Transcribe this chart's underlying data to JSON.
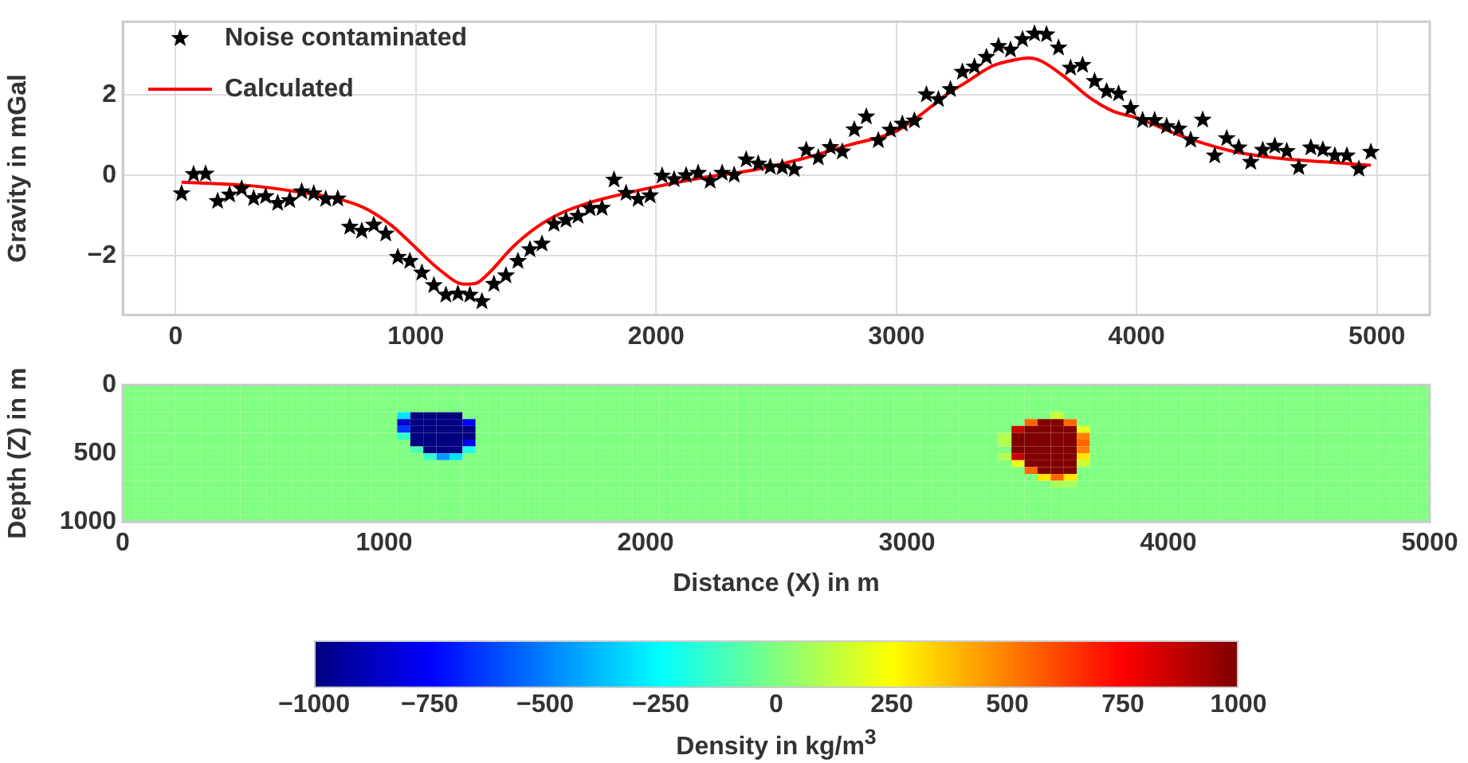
{
  "chart_data": [
    {
      "type": "scatter",
      "ylabel": "Gravity in mGal",
      "xlim": [
        -220,
        5220
      ],
      "xticks": [
        0,
        1000,
        2000,
        3000,
        4000,
        5000
      ],
      "ylim": [
        -3.47,
        3.82
      ],
      "yticks": [
        {
          "value": -2,
          "label": "−2"
        },
        0,
        2
      ],
      "grid": true,
      "legend": "top left",
      "series": [
        {
          "name": "Noise contaminated",
          "type": "scatter",
          "marker": "star",
          "color": "#000000",
          "x": [
            25,
            75,
            125,
            175,
            225,
            275,
            325,
            375,
            425,
            475,
            525,
            575,
            625,
            675,
            725,
            775,
            825,
            875,
            925,
            975,
            1025,
            1075,
            1125,
            1175,
            1225,
            1275,
            1325,
            1375,
            1425,
            1475,
            1525,
            1575,
            1625,
            1675,
            1725,
            1775,
            1825,
            1875,
            1925,
            1975,
            2025,
            2075,
            2125,
            2175,
            2225,
            2275,
            2325,
            2375,
            2425,
            2475,
            2525,
            2575,
            2625,
            2675,
            2725,
            2775,
            2825,
            2875,
            2925,
            2975,
            3025,
            3075,
            3125,
            3175,
            3225,
            3275,
            3325,
            3375,
            3425,
            3475,
            3525,
            3575,
            3625,
            3675,
            3725,
            3775,
            3825,
            3875,
            3925,
            3975,
            4025,
            4075,
            4125,
            4175,
            4225,
            4275,
            4325,
            4375,
            4425,
            4475,
            4525,
            4575,
            4625,
            4675,
            4725,
            4775,
            4825,
            4875,
            4925,
            4975
          ],
          "values": [
            -0.45,
            0.03,
            0.04,
            -0.64,
            -0.48,
            -0.33,
            -0.57,
            -0.52,
            -0.69,
            -0.62,
            -0.4,
            -0.45,
            -0.59,
            -0.58,
            -1.28,
            -1.38,
            -1.23,
            -1.45,
            -2.03,
            -2.13,
            -2.42,
            -2.73,
            -2.97,
            -2.94,
            -2.97,
            -3.13,
            -2.7,
            -2.49,
            -2.13,
            -1.84,
            -1.7,
            -1.21,
            -1.11,
            -1.01,
            -0.82,
            -0.81,
            -0.11,
            -0.44,
            -0.59,
            -0.5,
            -0.01,
            -0.1,
            0,
            0.06,
            -0.14,
            0.06,
            0.01,
            0.39,
            0.29,
            0.21,
            0.2,
            0.15,
            0.63,
            0.44,
            0.7,
            0.59,
            1.14,
            1.46,
            0.87,
            1.13,
            1.28,
            1.36,
            2.01,
            1.89,
            2.14,
            2.57,
            2.7,
            2.94,
            3.21,
            3.12,
            3.38,
            3.52,
            3.5,
            3.17,
            2.67,
            2.74,
            2.34,
            2.09,
            2.03,
            1.67,
            1.37,
            1.37,
            1.22,
            1.16,
            0.88,
            1.38,
            0.49,
            0.92,
            0.69,
            0.33,
            0.63,
            0.73,
            0.6,
            0.2,
            0.69,
            0.64,
            0.49,
            0.49,
            0.16,
            0.58
          ]
        },
        {
          "name": "Calculated",
          "type": "line",
          "marker": "none",
          "color": "#ff0000",
          "x": [
            25,
            300,
            500,
            700,
            800,
            900,
            1000,
            1100,
            1200,
            1250,
            1300,
            1400,
            1500,
            1600,
            1700,
            1800,
            2000,
            2200,
            2400,
            2600,
            2800,
            3000,
            3100,
            3200,
            3300,
            3400,
            3500,
            3550,
            3600,
            3700,
            3800,
            3900,
            4000,
            4200,
            4400,
            4600,
            4800,
            4975
          ],
          "values": [
            -0.17,
            -0.25,
            -0.4,
            -0.62,
            -0.85,
            -1.25,
            -1.8,
            -2.35,
            -2.7,
            -2.68,
            -2.45,
            -1.8,
            -1.3,
            -0.95,
            -0.72,
            -0.55,
            -0.28,
            -0.05,
            0.13,
            0.4,
            0.75,
            1.1,
            1.5,
            1.97,
            2.35,
            2.72,
            2.88,
            2.92,
            2.85,
            2.45,
            1.95,
            1.6,
            1.43,
            0.95,
            0.6,
            0.42,
            0.33,
            0.25
          ]
        }
      ]
    },
    {
      "type": "heatmap",
      "xlabel": "Distance (X) in m",
      "ylabel": "Depth (Z) in m",
      "clabel": "Density in kg/m$^{3}$",
      "xlim": [
        0,
        5000
      ],
      "xticks": [
        0,
        1000,
        2000,
        3000,
        4000,
        5000
      ],
      "ylim": [
        1000,
        0
      ],
      "yticks": [
        0,
        500,
        1000
      ],
      "clim": [
        -1000,
        1000
      ],
      "cticks": [
        {
          "value": -1000,
          "label": "−1000"
        },
        {
          "value": -750,
          "label": "−750"
        },
        {
          "value": -500,
          "label": "−500"
        },
        {
          "value": -250,
          "label": "−250"
        },
        0,
        250,
        500,
        750,
        1000
      ],
      "cells": [
        [
          0,
          0,
          0,
          0,
          0,
          0,
          0,
          0,
          0,
          0,
          0,
          0,
          0,
          0,
          0,
          0,
          0,
          0,
          0,
          0,
          0,
          0,
          0,
          0,
          0,
          0,
          0,
          0,
          0,
          0,
          0,
          0,
          0,
          0,
          0,
          0,
          0,
          0,
          0,
          0,
          0,
          0,
          0,
          0,
          0,
          0,
          0,
          0,
          0,
          0,
          0,
          0,
          0,
          0,
          0,
          0,
          0,
          0,
          0,
          0,
          0,
          0,
          0,
          0,
          0,
          0,
          0,
          0,
          0,
          0,
          0,
          0,
          0,
          0,
          0,
          0,
          0,
          0,
          0,
          0,
          0,
          0,
          0,
          0,
          0,
          0,
          0,
          0,
          0,
          0,
          0,
          0,
          0,
          0,
          0,
          0,
          0,
          0,
          0,
          0
        ],
        [
          0,
          0,
          0,
          0,
          0,
          0,
          0,
          0,
          0,
          0,
          0,
          0,
          0,
          0,
          0,
          0,
          0,
          0,
          0,
          0,
          0,
          0,
          0,
          0,
          0,
          0,
          0,
          0,
          0,
          0,
          0,
          0,
          0,
          0,
          0,
          0,
          0,
          0,
          0,
          0,
          0,
          0,
          0,
          0,
          0,
          0,
          0,
          0,
          0,
          0,
          0,
          0,
          0,
          0,
          0,
          0,
          0,
          0,
          0,
          0,
          0,
          0,
          0,
          0,
          0,
          0,
          0,
          0,
          0,
          0,
          0,
          0,
          0,
          0,
          0,
          0,
          0,
          0,
          0,
          0,
          0,
          0,
          0,
          0,
          0,
          0,
          0,
          0,
          0,
          0,
          0,
          0,
          0,
          0,
          0,
          0,
          0,
          0,
          0,
          0
        ],
        [
          0,
          0,
          0,
          0,
          0,
          0,
          0,
          0,
          0,
          0,
          0,
          0,
          0,
          0,
          0,
          0,
          0,
          0,
          0,
          0,
          0,
          0,
          0,
          0,
          0,
          0,
          0,
          0,
          0,
          0,
          0,
          0,
          0,
          0,
          0,
          0,
          0,
          0,
          0,
          0,
          0,
          0,
          0,
          0,
          0,
          0,
          0,
          0,
          0,
          0,
          0,
          0,
          0,
          0,
          0,
          0,
          0,
          0,
          0,
          0,
          0,
          0,
          0,
          0,
          0,
          0,
          0,
          0,
          0,
          0,
          0,
          0,
          0,
          0,
          0,
          0,
          0,
          0,
          0,
          0,
          0,
          0,
          0,
          0,
          0,
          0,
          0,
          0,
          0,
          0,
          0,
          0,
          0,
          0,
          0,
          0,
          0,
          0,
          0,
          0
        ],
        [
          0,
          0,
          0,
          0,
          0,
          0,
          0,
          0,
          0,
          0,
          0,
          0,
          0,
          0,
          0,
          0,
          0,
          0,
          0,
          0,
          0,
          0,
          0,
          0,
          0,
          0,
          0,
          0,
          0,
          0,
          0,
          0,
          0,
          0,
          0,
          0,
          0,
          0,
          0,
          0,
          0,
          0,
          0,
          0,
          0,
          0,
          0,
          0,
          0,
          0,
          0,
          0,
          0,
          0,
          0,
          0,
          0,
          0,
          0,
          0,
          0,
          0,
          0,
          0,
          0,
          0,
          0,
          0,
          0,
          0,
          0,
          0,
          0,
          0,
          0,
          0,
          0,
          0,
          0,
          0,
          0,
          0,
          0,
          0,
          0,
          0,
          0,
          0,
          0,
          0,
          0,
          0,
          0,
          0,
          0,
          0,
          0,
          0,
          0,
          0
        ],
        [
          0,
          0,
          0,
          0,
          0,
          0,
          0,
          0,
          0,
          0,
          0,
          0,
          0,
          0,
          0,
          0,
          0,
          0,
          0,
          0,
          0,
          -300,
          -1000,
          -1000,
          -1000,
          -1000,
          0,
          0,
          0,
          0,
          0,
          0,
          0,
          0,
          0,
          0,
          0,
          0,
          0,
          0,
          0,
          0,
          0,
          0,
          0,
          0,
          0,
          0,
          0,
          0,
          0,
          0,
          0,
          0,
          0,
          0,
          0,
          0,
          0,
          0,
          0,
          0,
          0,
          0,
          0,
          0,
          0,
          0,
          0,
          0,
          0,
          150,
          0,
          0,
          0,
          0,
          0,
          0,
          0,
          0,
          0,
          0,
          0,
          0,
          0,
          0,
          0,
          0,
          0,
          0,
          0,
          0,
          0,
          0,
          0,
          0,
          0,
          0,
          0,
          0
        ],
        [
          0,
          0,
          0,
          0,
          0,
          0,
          0,
          0,
          0,
          0,
          0,
          0,
          0,
          0,
          0,
          0,
          0,
          0,
          0,
          0,
          0,
          -850,
          -1000,
          -1000,
          -1000,
          -1000,
          -750,
          0,
          0,
          0,
          0,
          0,
          0,
          0,
          0,
          0,
          0,
          0,
          0,
          0,
          0,
          0,
          0,
          0,
          0,
          0,
          0,
          0,
          0,
          0,
          0,
          0,
          0,
          0,
          0,
          0,
          0,
          0,
          0,
          0,
          0,
          0,
          0,
          0,
          0,
          0,
          0,
          0,
          0,
          550,
          1000,
          1000,
          550,
          0,
          0,
          0,
          0,
          0,
          0,
          0,
          0,
          0,
          0,
          0,
          0,
          0,
          0,
          0,
          0,
          0,
          0,
          0,
          0,
          0,
          0,
          0,
          0,
          0,
          0,
          0
        ],
        [
          0,
          0,
          0,
          0,
          0,
          0,
          0,
          0,
          0,
          0,
          0,
          0,
          0,
          0,
          0,
          0,
          0,
          0,
          0,
          0,
          0,
          -650,
          -1000,
          -1000,
          -1000,
          -1000,
          -1000,
          0,
          0,
          0,
          0,
          0,
          0,
          0,
          0,
          0,
          0,
          0,
          0,
          0,
          0,
          0,
          0,
          0,
          0,
          0,
          0,
          0,
          0,
          0,
          0,
          0,
          0,
          0,
          0,
          0,
          0,
          0,
          0,
          0,
          0,
          0,
          0,
          0,
          0,
          0,
          0,
          0,
          850,
          1000,
          1000,
          1000,
          1000,
          200,
          0,
          0,
          0,
          0,
          0,
          0,
          0,
          0,
          0,
          0,
          0,
          0,
          0,
          0,
          0,
          0,
          0,
          0,
          0,
          0,
          0,
          0,
          0,
          0,
          0,
          0
        ],
        [
          0,
          0,
          0,
          0,
          0,
          0,
          0,
          0,
          0,
          0,
          0,
          0,
          0,
          0,
          0,
          0,
          0,
          0,
          0,
          0,
          0,
          -150,
          -1000,
          -1000,
          -1000,
          -1000,
          -1000,
          0,
          0,
          0,
          0,
          0,
          0,
          0,
          0,
          0,
          0,
          0,
          0,
          0,
          0,
          0,
          0,
          0,
          0,
          0,
          0,
          0,
          0,
          0,
          0,
          0,
          0,
          0,
          0,
          0,
          0,
          0,
          0,
          0,
          0,
          0,
          0,
          0,
          0,
          0,
          0,
          100,
          1000,
          1000,
          1000,
          1000,
          1000,
          500,
          0,
          0,
          0,
          0,
          0,
          0,
          0,
          0,
          0,
          0,
          0,
          0,
          0,
          0,
          0,
          0,
          0,
          0,
          0,
          0,
          0,
          0,
          0,
          0,
          0,
          0
        ],
        [
          0,
          0,
          0,
          0,
          0,
          0,
          0,
          0,
          0,
          0,
          0,
          0,
          0,
          0,
          0,
          0,
          0,
          0,
          0,
          0,
          0,
          0,
          -1000,
          -1000,
          -1000,
          -1000,
          -800,
          0,
          0,
          0,
          0,
          0,
          0,
          0,
          0,
          0,
          0,
          0,
          0,
          0,
          0,
          0,
          0,
          0,
          0,
          0,
          0,
          0,
          0,
          0,
          0,
          0,
          0,
          0,
          0,
          0,
          0,
          0,
          0,
          0,
          0,
          0,
          0,
          0,
          0,
          0,
          0,
          100,
          1000,
          1000,
          1000,
          1000,
          1000,
          550,
          0,
          0,
          0,
          0,
          0,
          0,
          0,
          0,
          0,
          0,
          0,
          0,
          0,
          0,
          0,
          0,
          0,
          0,
          0,
          0,
          0,
          0,
          0,
          0,
          0,
          0
        ],
        [
          0,
          0,
          0,
          0,
          0,
          0,
          0,
          0,
          0,
          0,
          0,
          0,
          0,
          0,
          0,
          0,
          0,
          0,
          0,
          0,
          0,
          0,
          -100,
          -1000,
          -1000,
          -1000,
          -200,
          0,
          0,
          0,
          0,
          0,
          0,
          0,
          0,
          0,
          0,
          0,
          0,
          0,
          0,
          0,
          0,
          0,
          0,
          0,
          0,
          0,
          0,
          0,
          0,
          0,
          0,
          0,
          0,
          0,
          0,
          0,
          0,
          0,
          0,
          0,
          0,
          0,
          0,
          0,
          0,
          0,
          1000,
          1000,
          1000,
          1000,
          1000,
          500,
          0,
          0,
          0,
          0,
          0,
          0,
          0,
          0,
          0,
          0,
          0,
          0,
          0,
          0,
          0,
          0,
          0,
          0,
          0,
          0,
          0,
          0,
          0,
          0,
          0,
          0
        ],
        [
          0,
          0,
          0,
          0,
          0,
          0,
          0,
          0,
          0,
          0,
          0,
          0,
          0,
          0,
          0,
          0,
          0,
          0,
          0,
          0,
          0,
          0,
          0,
          -150,
          -450,
          -300,
          0,
          0,
          0,
          0,
          0,
          0,
          0,
          0,
          0,
          0,
          0,
          0,
          0,
          0,
          0,
          0,
          0,
          0,
          0,
          0,
          0,
          0,
          0,
          0,
          0,
          0,
          0,
          0,
          0,
          0,
          0,
          0,
          0,
          0,
          0,
          0,
          0,
          0,
          0,
          0,
          0,
          100,
          850,
          1000,
          1000,
          1000,
          1000,
          300,
          0,
          0,
          0,
          0,
          0,
          0,
          0,
          0,
          0,
          0,
          0,
          0,
          0,
          0,
          0,
          0,
          0,
          0,
          0,
          0,
          0,
          0,
          0,
          0,
          0,
          0
        ],
        [
          0,
          0,
          0,
          0,
          0,
          0,
          0,
          0,
          0,
          0,
          0,
          0,
          0,
          0,
          0,
          0,
          0,
          0,
          0,
          0,
          0,
          0,
          0,
          0,
          0,
          0,
          0,
          0,
          0,
          0,
          0,
          0,
          0,
          0,
          0,
          0,
          0,
          0,
          0,
          0,
          0,
          0,
          0,
          0,
          0,
          0,
          0,
          0,
          0,
          0,
          0,
          0,
          0,
          0,
          0,
          0,
          0,
          0,
          0,
          0,
          0,
          0,
          0,
          0,
          0,
          0,
          0,
          0,
          200,
          1000,
          1000,
          1000,
          1000,
          150,
          0,
          0,
          0,
          0,
          0,
          0,
          0,
          0,
          0,
          0,
          0,
          0,
          0,
          0,
          0,
          0,
          0,
          0,
          0,
          0,
          0,
          0,
          0,
          0,
          0,
          0
        ],
        [
          0,
          0,
          0,
          0,
          0,
          0,
          0,
          0,
          0,
          0,
          0,
          0,
          0,
          0,
          0,
          0,
          0,
          0,
          0,
          0,
          0,
          0,
          0,
          0,
          0,
          0,
          0,
          0,
          0,
          0,
          0,
          0,
          0,
          0,
          0,
          0,
          0,
          0,
          0,
          0,
          0,
          0,
          0,
          0,
          0,
          0,
          0,
          0,
          0,
          0,
          0,
          0,
          0,
          0,
          0,
          0,
          0,
          0,
          0,
          0,
          0,
          0,
          0,
          0,
          0,
          0,
          0,
          0,
          0,
          550,
          1000,
          1000,
          1000,
          0,
          0,
          0,
          0,
          0,
          0,
          0,
          0,
          0,
          0,
          0,
          0,
          0,
          0,
          0,
          0,
          0,
          0,
          0,
          0,
          0,
          0,
          0,
          0,
          0,
          0,
          0
        ],
        [
          0,
          0,
          0,
          0,
          0,
          0,
          0,
          0,
          0,
          0,
          0,
          0,
          0,
          0,
          0,
          0,
          0,
          0,
          0,
          0,
          0,
          0,
          0,
          0,
          0,
          0,
          0,
          0,
          0,
          0,
          0,
          0,
          0,
          0,
          0,
          0,
          0,
          0,
          0,
          0,
          0,
          0,
          0,
          0,
          0,
          0,
          0,
          0,
          0,
          0,
          0,
          0,
          0,
          0,
          0,
          0,
          0,
          0,
          0,
          0,
          0,
          0,
          0,
          0,
          0,
          0,
          0,
          0,
          0,
          0,
          300,
          550,
          300,
          0,
          0,
          0,
          0,
          0,
          0,
          0,
          0,
          0,
          0,
          0,
          0,
          0,
          0,
          0,
          0,
          0,
          0,
          0,
          0,
          0,
          0,
          0,
          0,
          0,
          0,
          0
        ],
        [
          0,
          0,
          0,
          0,
          0,
          0,
          0,
          0,
          0,
          0,
          0,
          0,
          0,
          0,
          0,
          0,
          0,
          0,
          0,
          0,
          0,
          0,
          0,
          0,
          0,
          0,
          0,
          0,
          0,
          0,
          0,
          0,
          0,
          0,
          0,
          0,
          0,
          0,
          0,
          0,
          0,
          0,
          0,
          0,
          0,
          0,
          0,
          0,
          0,
          0,
          0,
          0,
          0,
          0,
          0,
          0,
          0,
          0,
          0,
          0,
          0,
          0,
          0,
          0,
          0,
          0,
          0,
          0,
          0,
          0,
          0,
          80,
          80,
          0,
          0,
          0,
          0,
          0,
          0,
          0,
          0,
          0,
          0,
          0,
          0,
          0,
          0,
          0,
          0,
          0,
          0,
          0,
          0,
          0,
          0,
          0,
          0,
          0,
          0,
          0
        ],
        [
          0,
          0,
          0,
          0,
          0,
          0,
          0,
          0,
          0,
          0,
          0,
          0,
          0,
          0,
          0,
          0,
          0,
          0,
          0,
          0,
          0,
          0,
          0,
          0,
          0,
          0,
          0,
          0,
          0,
          0,
          0,
          0,
          0,
          0,
          0,
          0,
          0,
          0,
          0,
          0,
          0,
          0,
          0,
          0,
          0,
          0,
          0,
          0,
          0,
          0,
          0,
          0,
          0,
          0,
          0,
          0,
          0,
          0,
          0,
          0,
          0,
          0,
          0,
          0,
          0,
          0,
          0,
          0,
          0,
          0,
          0,
          0,
          0,
          0,
          0,
          0,
          0,
          0,
          0,
          0,
          0,
          0,
          0,
          0,
          0,
          0,
          0,
          0,
          0,
          0,
          0,
          0,
          0,
          0,
          0,
          0,
          0,
          0,
          0,
          0
        ],
        [
          0,
          0,
          0,
          0,
          0,
          0,
          0,
          0,
          0,
          0,
          0,
          0,
          0,
          0,
          0,
          0,
          0,
          0,
          0,
          0,
          0,
          0,
          0,
          0,
          0,
          0,
          0,
          0,
          0,
          0,
          0,
          0,
          0,
          0,
          0,
          0,
          0,
          0,
          0,
          0,
          0,
          0,
          0,
          0,
          0,
          0,
          0,
          0,
          0,
          0,
          0,
          0,
          0,
          0,
          0,
          0,
          0,
          0,
          0,
          0,
          0,
          0,
          0,
          0,
          0,
          0,
          0,
          0,
          0,
          0,
          0,
          0,
          0,
          0,
          0,
          0,
          0,
          0,
          0,
          0,
          0,
          0,
          0,
          0,
          0,
          0,
          0,
          0,
          0,
          0,
          0,
          0,
          0,
          0,
          0,
          0,
          0,
          0,
          0,
          0
        ],
        [
          0,
          0,
          0,
          0,
          0,
          0,
          0,
          0,
          0,
          0,
          0,
          0,
          0,
          0,
          0,
          0,
          0,
          0,
          0,
          0,
          0,
          0,
          0,
          0,
          0,
          0,
          0,
          0,
          0,
          0,
          0,
          0,
          0,
          0,
          0,
          0,
          0,
          0,
          0,
          0,
          0,
          0,
          0,
          0,
          0,
          0,
          0,
          0,
          0,
          0,
          0,
          0,
          0,
          0,
          0,
          0,
          0,
          0,
          0,
          0,
          0,
          0,
          0,
          0,
          0,
          0,
          0,
          0,
          0,
          0,
          0,
          0,
          0,
          0,
          0,
          0,
          0,
          0,
          0,
          0,
          0,
          0,
          0,
          0,
          0,
          0,
          0,
          0,
          0,
          0,
          0,
          0,
          0,
          0,
          0,
          0,
          0,
          0,
          0,
          0
        ],
        [
          0,
          0,
          0,
          0,
          0,
          0,
          0,
          0,
          0,
          0,
          0,
          0,
          0,
          0,
          0,
          0,
          0,
          0,
          0,
          0,
          0,
          0,
          0,
          0,
          0,
          0,
          0,
          0,
          0,
          0,
          0,
          0,
          0,
          0,
          0,
          0,
          0,
          0,
          0,
          0,
          0,
          0,
          0,
          0,
          0,
          0,
          0,
          0,
          0,
          0,
          0,
          0,
          0,
          0,
          0,
          0,
          0,
          0,
          0,
          0,
          0,
          0,
          0,
          0,
          0,
          0,
          0,
          0,
          0,
          0,
          0,
          0,
          0,
          0,
          0,
          0,
          0,
          0,
          0,
          0,
          0,
          0,
          0,
          0,
          0,
          0,
          0,
          0,
          0,
          0,
          0,
          0,
          0,
          0,
          0,
          0,
          0,
          0,
          0,
          0
        ],
        [
          0,
          0,
          0,
          0,
          0,
          0,
          0,
          0,
          0,
          0,
          0,
          0,
          0,
          0,
          0,
          0,
          0,
          0,
          0,
          0,
          0,
          0,
          0,
          0,
          0,
          0,
          0,
          0,
          0,
          0,
          0,
          0,
          0,
          0,
          0,
          0,
          0,
          0,
          0,
          0,
          0,
          0,
          0,
          0,
          0,
          0,
          0,
          0,
          0,
          0,
          0,
          0,
          0,
          0,
          0,
          0,
          0,
          0,
          0,
          0,
          0,
          0,
          0,
          0,
          0,
          0,
          0,
          0,
          0,
          0,
          0,
          0,
          0,
          0,
          0,
          0,
          0,
          0,
          0,
          0,
          0,
          0,
          0,
          0,
          0,
          0,
          0,
          0,
          0,
          0,
          0,
          0,
          0,
          0,
          0,
          0,
          0,
          0,
          0,
          0
        ]
      ]
    }
  ]
}
